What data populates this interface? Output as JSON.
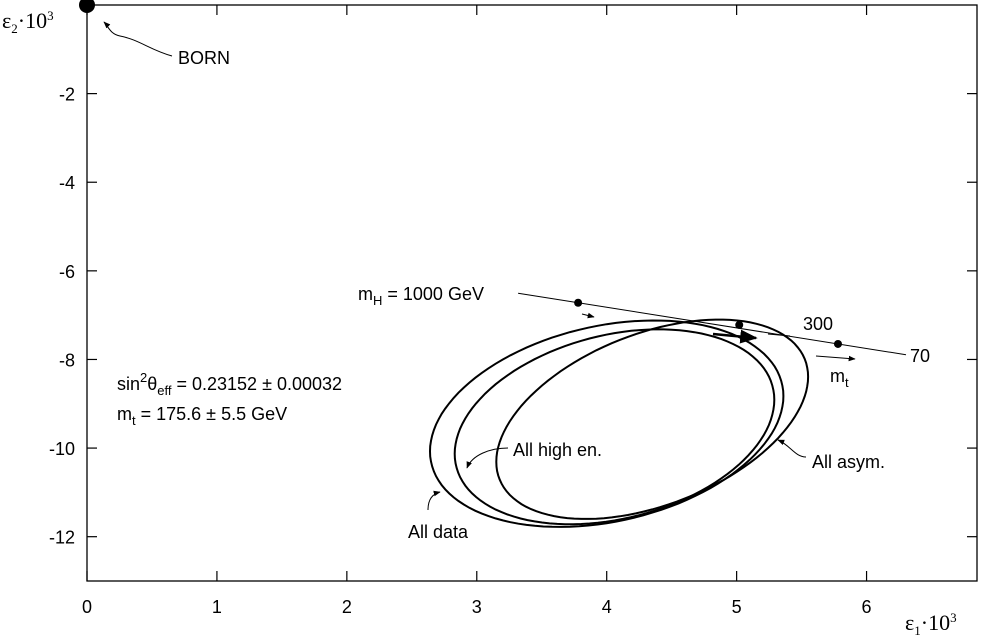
{
  "chart_data": {
    "type": "contour",
    "x_label": {
      "base": "ε",
      "sub": "1",
      "mid": "·10",
      "sup": "3"
    },
    "y_label": {
      "base": "ε",
      "sub": "2",
      "mid": "·10",
      "sup": "3"
    },
    "xlim": [
      0,
      6.85
    ],
    "ylim": [
      -13,
      0
    ],
    "xticks": [
      0,
      1,
      2,
      3,
      4,
      5,
      6
    ],
    "yticks": [
      -2,
      -4,
      -6,
      -8,
      -10,
      -12
    ],
    "ellipses": [
      {
        "name": "All data",
        "cx": 4.0,
        "cy": -9.45,
        "dx": 1.36,
        "dy": 2.33,
        "phase": 1.3
      },
      {
        "name": "All high en.",
        "cx": 4.06,
        "cy": -9.52,
        "dx": 1.23,
        "dy": 2.2,
        "phase": 1.29
      },
      {
        "name": "All asym.",
        "cx": 4.35,
        "cy": -9.35,
        "dx": 1.2,
        "dy": 2.25,
        "phase": 1.13
      }
    ],
    "born": {
      "label": "BORN",
      "x": 0,
      "y": 0
    },
    "sm_points": {
      "x": [
        3.78,
        5.02,
        5.78
      ],
      "y": [
        -6.72,
        -7.22,
        -7.65
      ],
      "labels": [
        {
          "base": "m",
          "sub": "H",
          "rest": " = 1000 GeV"
        },
        {
          "rest": "300"
        },
        {
          "rest": "70"
        }
      ]
    },
    "mt_label": {
      "base": "m",
      "sub": "t"
    },
    "fit_text": [
      {
        "a": "sin",
        "sup": "2",
        "b": "θ",
        "sub": "eff",
        "rest": " = 0.23152 ± 0.00032"
      },
      {
        "a": "m",
        "sub": "t",
        "rest": " = 175.6 ± 5.5 GeV"
      }
    ]
  }
}
